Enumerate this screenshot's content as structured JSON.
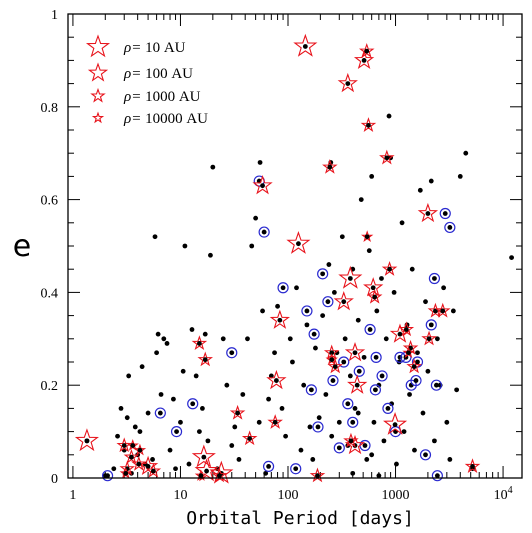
{
  "chart_data": {
    "type": "scatter",
    "title": "",
    "xlabel": "Orbital Period [days]",
    "ylabel": "e",
    "xscale": "log",
    "xlim": [
      0.9,
      15000
    ],
    "ylim": [
      0,
      1
    ],
    "x_tick_labels": [
      {
        "value": 1,
        "label": "1"
      },
      {
        "value": 10,
        "label": "10"
      },
      {
        "value": 100,
        "label": "100"
      },
      {
        "value": 1000,
        "label": "1000"
      },
      {
        "value": 10000,
        "label": "10",
        "sup": "4"
      }
    ],
    "y_tick_labels": [
      {
        "value": 0,
        "label": "0"
      },
      {
        "value": 0.2,
        "label": "0.2"
      },
      {
        "value": 0.4,
        "label": "0.4"
      },
      {
        "value": 0.6,
        "label": "0.6"
      },
      {
        "value": 0.8,
        "label": "0.8"
      },
      {
        "value": 1,
        "label": "1"
      }
    ],
    "legend": {
      "placement": "top-left",
      "marker": "red open star",
      "entries": [
        {
          "prefix": "ρ=",
          "value": "10 AU",
          "star_size": "largest"
        },
        {
          "prefix": "ρ=",
          "value": "100 AU",
          "star_size": "large"
        },
        {
          "prefix": "ρ=",
          "value": "1000 AU",
          "star_size": "medium"
        },
        {
          "prefix": "ρ=",
          "value": "10000 AU",
          "star_size": "small"
        }
      ]
    },
    "colors": {
      "points": "#000000",
      "circles": "#2a2ad0",
      "stars": "#e8141c",
      "axes": "#000000"
    },
    "series": [
      {
        "marker": "black dot",
        "points": [
          [
            1.35,
            0.08
          ],
          [
            2,
            0.005
          ],
          [
            2.4,
            0.02
          ],
          [
            2.6,
            0.09
          ],
          [
            2.8,
            0.15
          ],
          [
            3,
            0.06
          ],
          [
            3.2,
            0.13
          ],
          [
            3.3,
            0.22
          ],
          [
            3.5,
            0.01
          ],
          [
            3.8,
            0.11
          ],
          [
            4,
            0.05
          ],
          [
            4.2,
            0.1
          ],
          [
            4.4,
            0.24
          ],
          [
            4.7,
            0.03
          ],
          [
            5,
            0.14
          ],
          [
            5.5,
            0.04
          ],
          [
            5.8,
            0.52
          ],
          [
            6,
            0.27
          ],
          [
            6.2,
            0.31
          ],
          [
            6.6,
            0.18
          ],
          [
            7,
            0.3
          ],
          [
            7.5,
            0.29
          ],
          [
            8,
            0.06
          ],
          [
            8.6,
            0.17
          ],
          [
            9,
            0.02
          ],
          [
            10,
            0.12
          ],
          [
            10.6,
            0.23
          ],
          [
            11,
            0.5
          ],
          [
            12,
            0.03
          ],
          [
            12.8,
            0.32
          ],
          [
            14,
            0.22
          ],
          [
            15,
            0.1
          ],
          [
            16,
            0.15
          ],
          [
            17,
            0.31
          ],
          [
            18,
            0.08
          ],
          [
            19,
            0.48
          ],
          [
            20,
            0.67
          ],
          [
            22,
            0.02
          ],
          [
            25,
            0.3
          ],
          [
            27,
            0.2
          ],
          [
            30,
            0.07
          ],
          [
            32,
            0.11
          ],
          [
            35,
            0.04
          ],
          [
            38,
            0.18
          ],
          [
            42,
            0.3
          ],
          [
            46,
            0.5
          ],
          [
            50,
            0.56
          ],
          [
            54,
            0.12
          ],
          [
            55,
            0.68
          ],
          [
            58,
            0.36
          ],
          [
            62,
            0.01
          ],
          [
            66,
            0.17
          ],
          [
            70,
            0.22
          ],
          [
            75,
            0.27
          ],
          [
            80,
            0.37
          ],
          [
            88,
            0.15
          ],
          [
            95,
            0.09
          ],
          [
            105,
            0.3
          ],
          [
            110,
            0.25
          ],
          [
            120,
            0.41
          ],
          [
            132,
            0.06
          ],
          [
            140,
            0.2
          ],
          [
            150,
            0.33
          ],
          [
            160,
            0.11
          ],
          [
            170,
            0.04
          ],
          [
            180,
            0.28
          ],
          [
            195,
            0.13
          ],
          [
            210,
            0.35
          ],
          [
            225,
            0.18
          ],
          [
            240,
            0.46
          ],
          [
            255,
            0.09
          ],
          [
            270,
            0.4
          ],
          [
            285,
            0.27
          ],
          [
            300,
            0.12
          ],
          [
            320,
            0.52
          ],
          [
            340,
            0.3
          ],
          [
            360,
            0.07
          ],
          [
            380,
            0.22
          ],
          [
            400,
            0.45
          ],
          [
            420,
            0.15
          ],
          [
            450,
            0.34
          ],
          [
            480,
            0.6
          ],
          [
            510,
            0.26
          ],
          [
            540,
            0.04
          ],
          [
            570,
            0.49
          ],
          [
            600,
            0.65
          ],
          [
            630,
            0.12
          ],
          [
            670,
            0.36
          ],
          [
            700,
            0.2
          ],
          [
            740,
            0.43
          ],
          [
            780,
            0.08
          ],
          [
            820,
            0.3
          ],
          [
            870,
            0.78
          ],
          [
            920,
            0.16
          ],
          [
            970,
            0.4
          ],
          [
            1020,
            0.03
          ],
          [
            1080,
            0.25
          ],
          [
            1150,
            0.55
          ],
          [
            1200,
            0.1
          ],
          [
            1280,
            0.33
          ],
          [
            1350,
            0.18
          ],
          [
            1430,
            0.45
          ],
          [
            1500,
            0.06
          ],
          [
            1600,
            0.27
          ],
          [
            1700,
            0.62
          ],
          [
            1800,
            0.14
          ],
          [
            1900,
            0.38
          ],
          [
            2000,
            0.23
          ],
          [
            2150,
            0.64
          ],
          [
            2300,
            0.08
          ],
          [
            2450,
            0.3
          ],
          [
            2600,
            0.2
          ],
          [
            2800,
            0.41
          ],
          [
            3000,
            0.12
          ],
          [
            3200,
            0.04
          ],
          [
            3450,
            0.36
          ],
          [
            3700,
            0.19
          ],
          [
            4000,
            0.65
          ],
          [
            4500,
            0.7
          ],
          [
            5200,
            0.02
          ],
          [
            12000,
            0.475
          ],
          [
            400,
            0.01
          ],
          [
            700,
            0.005
          ],
          [
            900,
            0.69
          ],
          [
            250,
            0.68
          ],
          [
            600,
            0.05
          ],
          [
            450,
            0.14
          ]
        ]
      },
      {
        "marker": "dot with blue circle",
        "points": [
          [
            2.1,
            0.005
          ],
          [
            6.5,
            0.14
          ],
          [
            9.2,
            0.1
          ],
          [
            13,
            0.16
          ],
          [
            30,
            0.27
          ],
          [
            54,
            0.64
          ],
          [
            60,
            0.53
          ],
          [
            66,
            0.025
          ],
          [
            90,
            0.41
          ],
          [
            118,
            0.02
          ],
          [
            150,
            0.36
          ],
          [
            165,
            0.19
          ],
          [
            175,
            0.31
          ],
          [
            190,
            0.11
          ],
          [
            210,
            0.44
          ],
          [
            235,
            0.38
          ],
          [
            262,
            0.21
          ],
          [
            300,
            0.065
          ],
          [
            330,
            0.25
          ],
          [
            360,
            0.16
          ],
          [
            400,
            0.12
          ],
          [
            460,
            0.23
          ],
          [
            520,
            0.07
          ],
          [
            580,
            0.32
          ],
          [
            660,
            0.26
          ],
          [
            750,
            0.22
          ],
          [
            850,
            0.15
          ],
          [
            1000,
            0.1
          ],
          [
            1100,
            0.26
          ],
          [
            1250,
            0.26
          ],
          [
            1400,
            0.2
          ],
          [
            1550,
            0.21
          ],
          [
            1900,
            0.05
          ],
          [
            2150,
            0.33
          ],
          [
            2300,
            0.43
          ],
          [
            2400,
            0.2
          ],
          [
            2900,
            0.57
          ],
          [
            3200,
            0.54
          ],
          [
            2450,
            0.005
          ],
          [
            1600,
            0.25
          ],
          [
            650,
            0.19
          ]
        ]
      },
      {
        "marker": "dot with red star, rho = 10 AU",
        "points": [
          [
            1.35,
            0.08
          ],
          [
            16.5,
            0.045
          ],
          [
            17.5,
            0.015
          ],
          [
            24,
            0.01
          ],
          [
            125,
            0.505
          ],
          [
            380,
            0.43
          ],
          [
            990,
            0.115
          ],
          [
            145,
            0.93
          ]
        ]
      },
      {
        "marker": "dot with red star, rho = 100 AU",
        "points": [
          [
            5,
            0.025
          ],
          [
            84,
            0.34
          ],
          [
            58,
            0.63
          ],
          [
            78,
            0.21
          ],
          [
            330,
            0.38
          ],
          [
            510,
            0.9
          ],
          [
            360,
            0.85
          ],
          [
            420,
            0.27
          ],
          [
            620,
            0.41
          ],
          [
            440,
            0.2
          ],
          [
            1100,
            0.31
          ],
          [
            2000,
            0.57
          ],
          [
            420,
            0.07
          ]
        ]
      },
      {
        "marker": "dot with red star, rho = 1000 AU",
        "points": [
          [
            3,
            0.07
          ],
          [
            3.5,
            0.045
          ],
          [
            3.2,
            0.02
          ],
          [
            4.1,
            0.03
          ],
          [
            5.6,
            0.015
          ],
          [
            15,
            0.29
          ],
          [
            17,
            0.255
          ],
          [
            23,
            0.005
          ],
          [
            34,
            0.14
          ],
          [
            44,
            0.085
          ],
          [
            76,
            0.12
          ],
          [
            188,
            0.005
          ],
          [
            245,
            0.67
          ],
          [
            255,
            0.27
          ],
          [
            275,
            0.24
          ],
          [
            385,
            0.08
          ],
          [
            540,
            0.92
          ],
          [
            560,
            0.76
          ],
          [
            640,
            0.39
          ],
          [
            830,
            0.69
          ],
          [
            880,
            0.45
          ],
          [
            1260,
            0.32
          ],
          [
            1380,
            0.28
          ],
          [
            1490,
            0.24
          ],
          [
            2050,
            0.3
          ],
          [
            2350,
            0.36
          ],
          [
            2750,
            0.36
          ],
          [
            5200,
            0.025
          ]
        ]
      },
      {
        "marker": "dot with red star, rho = 10000 AU",
        "points": [
          [
            3.1,
            0.01
          ],
          [
            3.6,
            0.07
          ],
          [
            4.2,
            0.06
          ],
          [
            15.5,
            0.005
          ],
          [
            255,
            0.255
          ],
          [
            545,
            0.52
          ],
          [
            1320,
            0.27
          ]
        ]
      }
    ]
  }
}
